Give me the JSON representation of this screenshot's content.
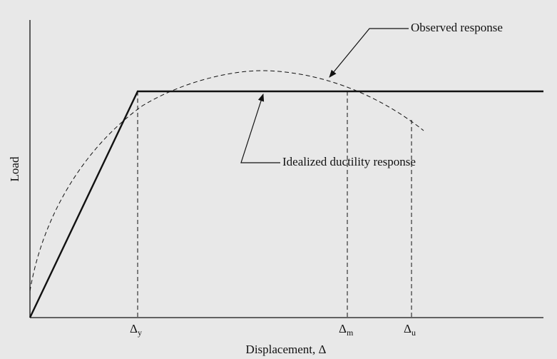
{
  "axes": {
    "y_label": "Load",
    "x_label": "Displacement, Δ"
  },
  "annotations": {
    "observed": "Observed response",
    "idealized": "Idealized ductility response"
  },
  "markers": [
    {
      "symbol": "Δ",
      "sub": "y"
    },
    {
      "symbol": "Δ",
      "sub": "m"
    },
    {
      "symbol": "Δ",
      "sub": "u"
    }
  ]
}
